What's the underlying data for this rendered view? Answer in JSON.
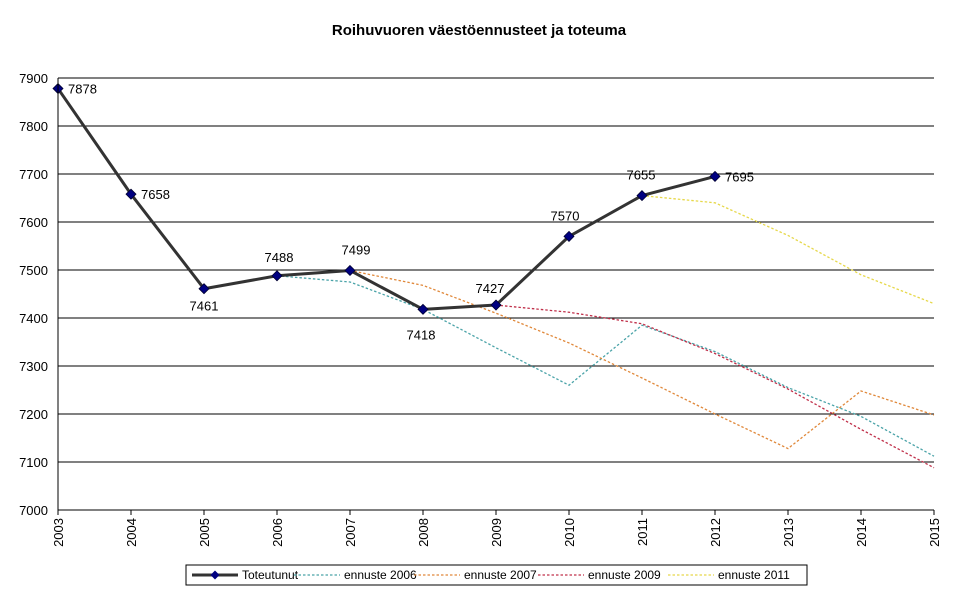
{
  "chart_data": {
    "type": "line",
    "title": "Roihuvuoren väestöennusteet ja toteuma",
    "xlabel": "",
    "ylabel": "",
    "x": [
      "2003",
      "2004",
      "2005",
      "2006",
      "2007",
      "2008",
      "2009",
      "2010",
      "2011",
      "2012",
      "2013",
      "2014",
      "2015"
    ],
    "ylim": [
      7000,
      7900
    ],
    "yticks": [
      7000,
      7100,
      7200,
      7300,
      7400,
      7500,
      7600,
      7700,
      7800,
      7900
    ],
    "grid": true,
    "legend_position": "bottom",
    "series": [
      {
        "name": "Toteutunut",
        "color": "#333333",
        "marker_color": "#000080",
        "style": "solid-markers",
        "x": [
          "2003",
          "2004",
          "2005",
          "2006",
          "2007",
          "2008",
          "2009",
          "2010",
          "2011",
          "2012"
        ],
        "values": [
          7878,
          7658,
          7461,
          7488,
          7499,
          7418,
          7427,
          7570,
          7655,
          7695
        ],
        "data_labels": [
          "7878",
          "7658",
          "7461",
          "7488",
          "7499",
          "7418",
          "7427",
          "7570",
          "7655",
          "7695"
        ]
      },
      {
        "name": "ennuste 2006",
        "color": "#4aa3a8",
        "style": "dotted",
        "x": [
          "2006",
          "2007",
          "2008",
          "2009",
          "2010",
          "2011",
          "2012",
          "2013",
          "2014",
          "2015"
        ],
        "values": [
          7488,
          7475,
          7418,
          7338,
          7260,
          7385,
          7330,
          7255,
          7195,
          7112
        ]
      },
      {
        "name": "ennuste 2007",
        "color": "#e0883a",
        "style": "dotted",
        "x": [
          "2007",
          "2008",
          "2009",
          "2010",
          "2011",
          "2012",
          "2013",
          "2014",
          "2015"
        ],
        "values": [
          7499,
          7468,
          7410,
          7348,
          7275,
          7200,
          7128,
          7248,
          7198
        ]
      },
      {
        "name": "ennuste 2009",
        "color": "#c0304a",
        "style": "dotted",
        "x": [
          "2009",
          "2010",
          "2011",
          "2012",
          "2013",
          "2014",
          "2015"
        ],
        "values": [
          7427,
          7412,
          7388,
          7326,
          7252,
          7168,
          7088
        ]
      },
      {
        "name": "ennuste 2011",
        "color": "#e6d84a",
        "style": "dotted",
        "x": [
          "2011",
          "2012",
          "2013",
          "2014",
          "2015"
        ],
        "values": [
          7655,
          7640,
          7572,
          7490,
          7430
        ]
      }
    ]
  }
}
